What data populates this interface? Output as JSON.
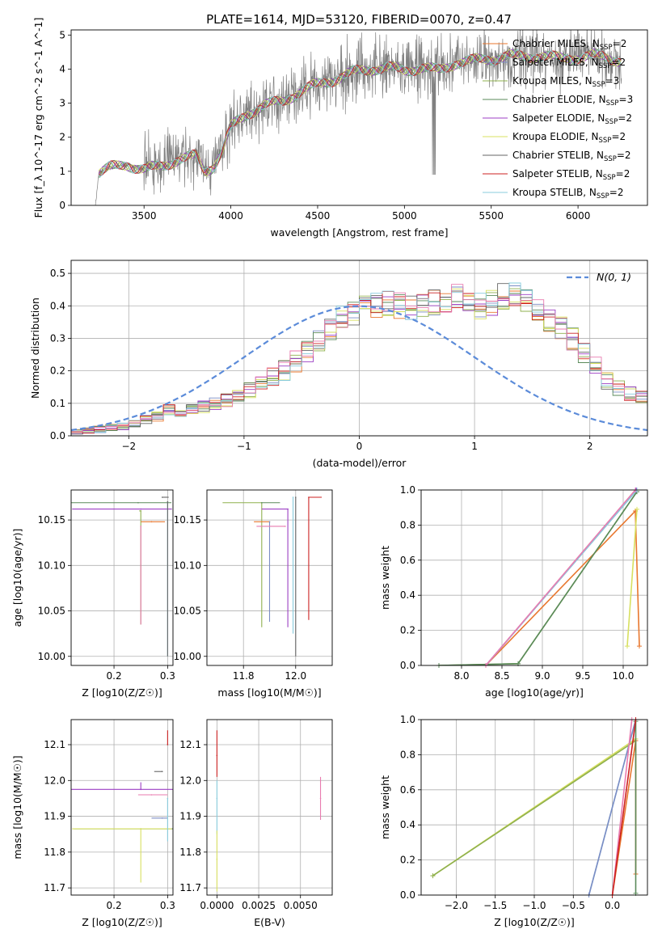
{
  "title": "PLATE=1614, MJD=53120, FIBERID=0070, z=0.47",
  "colors": [
    "#E8772E",
    "#7B8CC4",
    "#8FB04F",
    "#5A8A5A",
    "#9C3FC4",
    "#D8E060",
    "#666666",
    "#CC2222",
    "#88CCDD",
    "#E87BAF"
  ],
  "chart_data": [
    {
      "id": "spectrum",
      "type": "line",
      "xlabel": "wavelength [Angstrom, rest frame]",
      "ylabel": "Flux [f_λ 10^-17 erg cm^-2 s^-1 A^-1]",
      "xlim": [
        3080,
        6400
      ],
      "ylim": [
        0,
        5.15
      ],
      "xticks": [
        "3500",
        "4000",
        "4500",
        "5000",
        "5500",
        "6000"
      ],
      "yticks": [
        "0",
        "1",
        "2",
        "3",
        "4",
        "5"
      ],
      "grid": false,
      "legend_position": "top-right",
      "data_range": [
        3220,
        6250
      ],
      "data_noise_start": 3500,
      "model_points": [
        [
          3220,
          0.0
        ],
        [
          3240,
          0.95
        ],
        [
          3300,
          1.1
        ],
        [
          3400,
          1.2
        ],
        [
          3500,
          1.05
        ],
        [
          3600,
          1.15
        ],
        [
          3700,
          1.35
        ],
        [
          3800,
          1.45
        ],
        [
          3850,
          1.0
        ],
        [
          3900,
          1.15
        ],
        [
          3950,
          1.6
        ],
        [
          4000,
          2.3
        ],
        [
          4100,
          2.7
        ],
        [
          4200,
          2.95
        ],
        [
          4300,
          3.05
        ],
        [
          4400,
          3.35
        ],
        [
          4500,
          3.55
        ],
        [
          4600,
          3.7
        ],
        [
          4700,
          3.9
        ],
        [
          4800,
          4.0
        ],
        [
          4900,
          4.05
        ],
        [
          5000,
          3.95
        ],
        [
          5100,
          4.05
        ],
        [
          5200,
          3.95
        ],
        [
          5300,
          4.2
        ],
        [
          5400,
          4.25
        ],
        [
          5500,
          4.3
        ],
        [
          5600,
          4.4
        ],
        [
          5700,
          4.35
        ],
        [
          5800,
          4.4
        ],
        [
          5900,
          4.3
        ],
        [
          6000,
          4.35
        ],
        [
          6100,
          4.4
        ],
        [
          6200,
          4.3
        ],
        [
          6250,
          4.25
        ]
      ],
      "legend": [
        {
          "label": "Chabrier MILES, N",
          "sub": "SSP",
          "suffix": "=2",
          "color": "#E8772E"
        },
        {
          "label": "Salpeter MILES, N",
          "sub": "SSP",
          "suffix": "=2",
          "color": "#7B8CC4"
        },
        {
          "label": "Kroupa MILES, N",
          "sub": "SSP",
          "suffix": "=3",
          "color": "#8FB04F"
        },
        {
          "label": "Chabrier ELODIE, N",
          "sub": "SSP",
          "suffix": "=3",
          "color": "#5A8A5A"
        },
        {
          "label": "Salpeter ELODIE, N",
          "sub": "SSP",
          "suffix": "=2",
          "color": "#9C3FC4"
        },
        {
          "label": "Kroupa ELODIE, N",
          "sub": "SSP",
          "suffix": "=2",
          "color": "#D8E060"
        },
        {
          "label": "Chabrier STELIB, N",
          "sub": "SSP",
          "suffix": "=2",
          "color": "#666666"
        },
        {
          "label": "Salpeter STELIB, N",
          "sub": "SSP",
          "suffix": "=2",
          "color": "#CC2222"
        },
        {
          "label": "Kroupa STELIB, N",
          "sub": "SSP",
          "suffix": "=2",
          "color": "#88CCDD"
        }
      ]
    },
    {
      "id": "residuals",
      "type": "histogram",
      "xlabel": "(data-model)/error",
      "ylabel": "Normed distribution",
      "xlim": [
        -2.5,
        2.5
      ],
      "ylim": [
        0,
        0.54
      ],
      "xticks": [
        -2,
        -1,
        0,
        1,
        2
      ],
      "xtick_labels": [
        "−2",
        "−1",
        "0",
        "1",
        "2"
      ],
      "yticks": [
        0.0,
        0.1,
        0.2,
        0.3,
        0.4,
        0.5
      ],
      "ytick_labels": [
        "0.0",
        "0.1",
        "0.2",
        "0.3",
        "0.4",
        "0.5"
      ],
      "grid": true,
      "legend_label": "N(0, 1)",
      "legend_position": "top-right",
      "bin_edges_start": -2.5,
      "bin_width": 0.1,
      "base_values": [
        0.01,
        0.015,
        0.02,
        0.025,
        0.03,
        0.04,
        0.05,
        0.06,
        0.08,
        0.07,
        0.08,
        0.09,
        0.1,
        0.11,
        0.12,
        0.14,
        0.16,
        0.18,
        0.2,
        0.23,
        0.26,
        0.29,
        0.32,
        0.36,
        0.38,
        0.4,
        0.4,
        0.41,
        0.4,
        0.39,
        0.4,
        0.41,
        0.42,
        0.43,
        0.41,
        0.4,
        0.41,
        0.43,
        0.44,
        0.42,
        0.39,
        0.36,
        0.33,
        0.3,
        0.25,
        0.21,
        0.17,
        0.15,
        0.13,
        0.12,
        0.11,
        0.1,
        0.09,
        0.08,
        0.07,
        0.06,
        0.05,
        0.04,
        0.03,
        0.025
      ]
    },
    {
      "id": "age-vs-Z",
      "type": "errorbar",
      "xlabel": "Z [log10(Z/Z☉)]",
      "ylabel": "age  [log10(age/yr)]",
      "xlim": [
        0.12,
        0.31
      ],
      "ylim": [
        9.99,
        10.183
      ],
      "xticks": [
        0.2,
        0.3
      ],
      "xtick_labels": [
        "0.2",
        "0.3"
      ],
      "yticks": [
        10.0,
        10.05,
        10.1,
        10.15
      ],
      "ytick_labels": [
        "10.00",
        "10.05",
        "10.10",
        "10.15"
      ],
      "grid": true,
      "points": [
        {
          "x": 0.245,
          "xerr": [
            0.125,
            0.062
          ],
          "y": 10.169,
          "yerr": [
            0.0,
            0.0
          ],
          "color": "#5A8A5A"
        },
        {
          "x": 0.25,
          "xerr": [
            0.128,
            0.058
          ],
          "y": 10.162,
          "yerr": [
            0.0,
            0.0
          ],
          "color": "#9C3FC4"
        },
        {
          "x": 0.25,
          "xerr": [
            0.003,
            0.0
          ],
          "y": 10.16,
          "yerr": [
            0.125,
            0.0
          ],
          "color": "#8FB04F"
        },
        {
          "x": 0.27,
          "xerr": [
            0.02,
            0.025
          ],
          "y": 10.148,
          "yerr": [
            0.0,
            0.0
          ],
          "color": "#E8772E"
        },
        {
          "x": 0.25,
          "xerr": [
            0.0,
            0.0
          ],
          "y": 10.143,
          "yerr": [
            0.108,
            0.0
          ],
          "color": "#E87BAF"
        },
        {
          "x": 0.29,
          "xerr": [
            0.0,
            0.012
          ],
          "y": 10.175,
          "yerr": [
            0.0,
            0.0
          ],
          "color": "#666666"
        },
        {
          "x": 0.3,
          "xerr": [
            0.0,
            0.0
          ],
          "y": 10.17,
          "yerr": [
            0.17,
            0.0
          ],
          "color": "#88CCDD"
        },
        {
          "x": 0.3,
          "xerr": [
            0.0,
            0.0
          ],
          "y": 10.17,
          "yerr": [
            0.17,
            0.0
          ],
          "color": "#666666"
        }
      ]
    },
    {
      "id": "age-vs-mass",
      "type": "errorbar",
      "xlabel": "mass [log10(M/M☉)]",
      "ylabel": "",
      "xlim": [
        11.66,
        12.14
      ],
      "ylim": [
        9.99,
        10.183
      ],
      "xticks": [
        11.8,
        12.0
      ],
      "xtick_labels": [
        "11.8",
        "12.0"
      ],
      "yticks": [
        10.0,
        10.05,
        10.1,
        10.15
      ],
      "ytick_labels": [
        "10.00",
        "10.05",
        "10.10",
        "10.15"
      ],
      "grid": true,
      "points": [
        {
          "x": 11.87,
          "xerr": [
            0.15,
            0.0
          ],
          "y": 10.169,
          "yerr": [
            0.137,
            0.0
          ],
          "color": "#8FB04F"
        },
        {
          "x": 11.87,
          "xerr": [
            0.0,
            0.07
          ],
          "y": 10.169,
          "yerr": [
            0.0,
            0.0
          ],
          "color": "#5A8A5A"
        },
        {
          "x": 11.97,
          "xerr": [
            0.1,
            0.0
          ],
          "y": 10.162,
          "yerr": [
            0.13,
            0.0
          ],
          "color": "#9C3FC4"
        },
        {
          "x": 11.9,
          "xerr": [
            0.06,
            0.0
          ],
          "y": 10.148,
          "yerr": [
            0.0,
            0.0
          ],
          "color": "#E8772E"
        },
        {
          "x": 11.9,
          "xerr": [
            0.0,
            0.0
          ],
          "y": 10.148,
          "yerr": [
            0.11,
            0.0
          ],
          "color": "#7B8CC4"
        },
        {
          "x": 11.96,
          "xerr": [
            0.11,
            0.0
          ],
          "y": 10.143,
          "yerr": [
            0.0,
            0.0
          ],
          "color": "#E87BAF"
        },
        {
          "x": 11.99,
          "xerr": [
            0.0,
            0.0
          ],
          "y": 10.175,
          "yerr": [
            0.15,
            0.0
          ],
          "color": "#88CCDD"
        },
        {
          "x": 12.0,
          "xerr": [
            0.0,
            0.0
          ],
          "y": 10.175,
          "yerr": [
            0.175,
            0.0
          ],
          "color": "#666666"
        },
        {
          "x": 12.05,
          "xerr": [
            0.0,
            0.05
          ],
          "y": 10.175,
          "yerr": [
            0.135,
            0.0
          ],
          "color": "#CC2222"
        }
      ]
    },
    {
      "id": "weight-vs-age",
      "type": "line",
      "xlabel": "age  [log10(age/yr)]",
      "ylabel": "mass weight",
      "xlim": [
        7.5,
        10.3
      ],
      "ylim": [
        0.0,
        1.0
      ],
      "xticks": [
        8.0,
        8.5,
        9.0,
        9.5,
        10.0
      ],
      "xtick_labels": [
        "8.0",
        "8.5",
        "9.0",
        "9.5",
        "10.0"
      ],
      "yticks": [
        0.0,
        0.2,
        0.4,
        0.6,
        0.8,
        1.0
      ],
      "ytick_labels": [
        "0.0",
        "0.2",
        "0.4",
        "0.6",
        "0.8",
        "1.0"
      ],
      "grid": true,
      "series": [
        {
          "color": "#E8772E",
          "points": [
            [
              8.3,
              0.0
            ],
            [
              10.15,
              0.88
            ],
            [
              10.2,
              0.11
            ]
          ]
        },
        {
          "color": "#7B8CC4",
          "points": [
            [
              8.3,
              0.0
            ],
            [
              10.17,
              1.0
            ]
          ]
        },
        {
          "color": "#8FB04F",
          "points": [
            [
              7.72,
              0.0
            ],
            [
              8.7,
              0.01
            ],
            [
              10.17,
              0.99
            ]
          ]
        },
        {
          "color": "#5A8A5A",
          "points": [
            [
              7.72,
              0.0
            ],
            [
              8.7,
              0.01
            ],
            [
              10.17,
              0.99
            ]
          ]
        },
        {
          "color": "#9C3FC4",
          "points": [
            [
              8.3,
              0.0
            ],
            [
              10.16,
              1.0
            ]
          ]
        },
        {
          "color": "#D8E060",
          "points": [
            [
              10.05,
              0.11
            ],
            [
              10.17,
              0.89
            ]
          ]
        },
        {
          "color": "#88CCDD",
          "points": [
            [
              8.3,
              0.0
            ],
            [
              10.17,
              1.0
            ]
          ]
        },
        {
          "color": "#E87BAF",
          "points": [
            [
              8.3,
              0.0
            ],
            [
              10.15,
              1.0
            ]
          ]
        }
      ]
    },
    {
      "id": "mass-vs-Z",
      "type": "errorbar",
      "xlabel": "Z [log10(Z/Z☉)]",
      "ylabel": "mass [log10(M/M☉)]",
      "xlim": [
        0.12,
        0.31
      ],
      "ylim": [
        11.68,
        12.17
      ],
      "xticks": [
        0.2,
        0.3
      ],
      "xtick_labels": [
        "0.2",
        "0.3"
      ],
      "yticks": [
        11.7,
        11.8,
        11.9,
        12.0,
        12.1
      ],
      "ytick_labels": [
        "11.7",
        "11.8",
        "11.9",
        "12.0",
        "12.1"
      ],
      "grid": true,
      "points": [
        {
          "x": 0.3,
          "xerr": [
            0.0,
            0.0
          ],
          "y": 12.1,
          "yerr": [
            0.0,
            0.04
          ],
          "color": "#CC2222"
        },
        {
          "x": 0.29,
          "xerr": [
            0.015,
            0.0
          ],
          "y": 12.025,
          "yerr": [
            0.0,
            0.0
          ],
          "color": "#666666"
        },
        {
          "x": 0.25,
          "xerr": [
            0.13,
            0.06
          ],
          "y": 11.975,
          "yerr": [
            0.0,
            0.02
          ],
          "color": "#9C3FC4"
        },
        {
          "x": 0.27,
          "xerr": [
            0.025,
            0.03
          ],
          "y": 11.96,
          "yerr": [
            0.0,
            0.0
          ],
          "color": "#E87BAF"
        },
        {
          "x": 0.29,
          "xerr": [
            0.02,
            0.01
          ],
          "y": 11.895,
          "yerr": [
            0.0,
            0.0
          ],
          "color": "#7B8CC4"
        },
        {
          "x": 0.25,
          "xerr": [
            0.125,
            0.062
          ],
          "y": 11.865,
          "yerr": [
            0.0,
            0.0
          ],
          "color": "#5A8A5A"
        },
        {
          "x": 0.25,
          "xerr": [
            0.128,
            0.058
          ],
          "y": 11.865,
          "yerr": [
            0.15,
            0.0
          ],
          "color": "#D8E060"
        },
        {
          "x": 0.3,
          "xerr": [
            0.0,
            0.0
          ],
          "y": 11.95,
          "yerr": [
            0.12,
            0.0
          ],
          "color": "#88CCDD"
        }
      ]
    },
    {
      "id": "mass-vs-EBV",
      "type": "errorbar",
      "xlabel": "E(B-V)",
      "ylabel": "",
      "xlim": [
        -0.0006,
        0.0069
      ],
      "ylim": [
        11.68,
        12.17
      ],
      "xticks": [
        0.0,
        0.0025,
        0.005
      ],
      "xtick_labels": [
        "0.0000",
        "0.0025",
        "0.0050"
      ],
      "yticks": [
        11.7,
        11.8,
        11.9,
        12.0,
        12.1
      ],
      "ytick_labels": [
        "11.7",
        "11.8",
        "11.9",
        "12.0",
        "12.1"
      ],
      "grid": true,
      "points": [
        {
          "x": 0.0,
          "xerr": [
            0.0,
            0.0
          ],
          "y": 12.07,
          "yerr": [
            0.06,
            0.07
          ],
          "color": "#CC2222"
        },
        {
          "x": 0.0,
          "xerr": [
            0.0,
            0.0
          ],
          "y": 11.95,
          "yerr": [
            0.1,
            0.05
          ],
          "color": "#88CCDD"
        },
        {
          "x": 0.0,
          "xerr": [
            0.0,
            0.0
          ],
          "y": 11.78,
          "yerr": [
            0.09,
            0.08
          ],
          "color": "#D8E060"
        },
        {
          "x": 0.0062,
          "xerr": [
            0.0,
            0.0
          ],
          "y": 11.95,
          "yerr": [
            0.06,
            0.06
          ],
          "color": "#E87BAF"
        }
      ]
    },
    {
      "id": "weight-vs-Z",
      "type": "line",
      "xlabel": "Z [log10(Z/Z☉)]",
      "ylabel": "mass weight",
      "xlim": [
        -2.45,
        0.45
      ],
      "ylim": [
        0.0,
        1.0
      ],
      "xticks": [
        -2.0,
        -1.5,
        -1.0,
        -0.5,
        0.0
      ],
      "xtick_labels": [
        "−2.0",
        "−1.5",
        "−1.0",
        "−0.5",
        "0.0"
      ],
      "yticks": [
        0.0,
        0.2,
        0.4,
        0.6,
        0.8,
        1.0
      ],
      "ytick_labels": [
        "0.0",
        "0.2",
        "0.4",
        "0.6",
        "0.8",
        "1.0"
      ],
      "grid": true,
      "series": [
        {
          "color": "#D8E060",
          "points": [
            [
              -2.3,
              0.11
            ],
            [
              0.3,
              0.89
            ]
          ]
        },
        {
          "color": "#8FB04F",
          "points": [
            [
              -2.3,
              0.11
            ],
            [
              0.3,
              0.88
            ]
          ]
        },
        {
          "color": "#E8772E",
          "points": [
            [
              0.0,
              0.0
            ],
            [
              0.3,
              0.88
            ],
            [
              0.3,
              0.12
            ]
          ]
        },
        {
          "color": "#88CCDD",
          "points": [
            [
              -0.3,
              0.0
            ],
            [
              0.3,
              1.0
            ]
          ]
        },
        {
          "color": "#7B8CC4",
          "points": [
            [
              -0.3,
              0.0
            ],
            [
              0.3,
              1.0
            ]
          ]
        },
        {
          "color": "#5A8A5A",
          "points": [
            [
              0.3,
              0.01
            ],
            [
              0.3,
              0.99
            ]
          ]
        },
        {
          "color": "#E87BAF",
          "points": [
            [
              0.0,
              0.0
            ],
            [
              0.25,
              1.0
            ]
          ]
        },
        {
          "color": "#CC2222",
          "points": [
            [
              0.0,
              0.0
            ],
            [
              0.3,
              1.0
            ]
          ]
        }
      ]
    }
  ]
}
